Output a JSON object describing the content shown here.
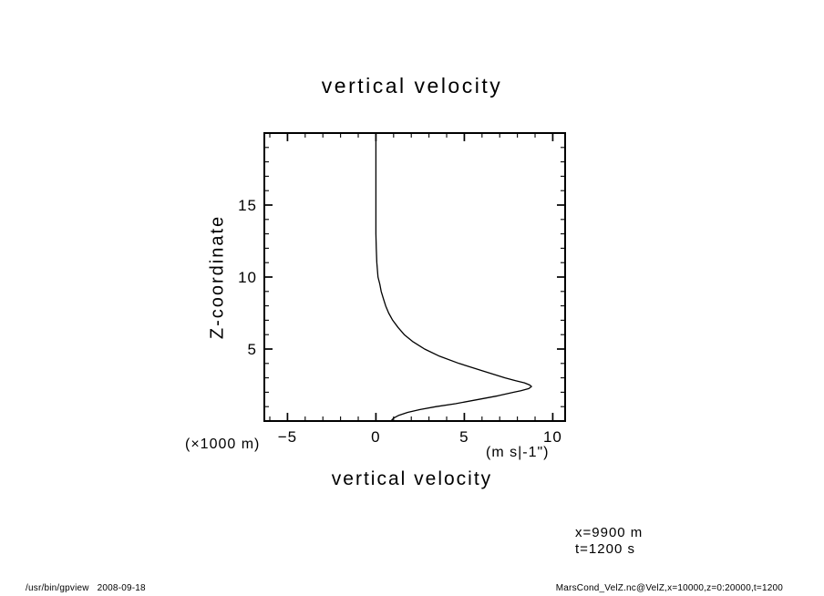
{
  "page": {
    "title": "vertical velocity",
    "x_axis_title": "vertical velocity",
    "y_axis_label": "Z-coordinate",
    "x_unit_left": "(×1000 m)",
    "x_unit_right": "(m s|-1\")",
    "annotations": [
      "x=9900 m",
      "t=1200 s"
    ],
    "footer_left": "/usr/bin/gpview   2008-09-18",
    "footer_right": "MarsCond_VelZ.nc@VelZ,x=10000,z=0:20000,t=1200"
  },
  "chart_data": {
    "type": "line",
    "title": "vertical velocity",
    "xlabel": "vertical velocity (m s-1)",
    "ylabel": "Z-coordinate (×1000 m)",
    "xlim": [
      -6.31,
      10.7
    ],
    "ylim": [
      0,
      20
    ],
    "grid": false,
    "legend": "none",
    "line_color": "#000000",
    "x_ticks": [
      {
        "value": -5,
        "label": "−5"
      },
      {
        "value": 0,
        "label": "0"
      },
      {
        "value": 5,
        "label": "5"
      },
      {
        "value": 10,
        "label": "10"
      }
    ],
    "y_ticks": [
      {
        "value": 5,
        "label": "5"
      },
      {
        "value": 10,
        "label": "10"
      },
      {
        "value": 15,
        "label": "15"
      }
    ],
    "x_minor_step": 1,
    "y_minor_step": 1,
    "series": [
      {
        "name": "VelZ",
        "points": [
          [
            0,
            20
          ],
          [
            0,
            17
          ],
          [
            0,
            15
          ],
          [
            0,
            13
          ],
          [
            0.02,
            12
          ],
          [
            0.05,
            11
          ],
          [
            0.12,
            10
          ],
          [
            0.22,
            9.5
          ],
          [
            0.3,
            9
          ],
          [
            0.42,
            8.5
          ],
          [
            0.55,
            8
          ],
          [
            0.72,
            7.5
          ],
          [
            0.95,
            7
          ],
          [
            1.25,
            6.5
          ],
          [
            1.6,
            6
          ],
          [
            2.1,
            5.5
          ],
          [
            2.75,
            5
          ],
          [
            3.6,
            4.5
          ],
          [
            4.7,
            4
          ],
          [
            6.0,
            3.5
          ],
          [
            7.3,
            3
          ],
          [
            7.9,
            2.8
          ],
          [
            8.4,
            2.65
          ],
          [
            8.7,
            2.5
          ],
          [
            8.8,
            2.4
          ],
          [
            8.65,
            2.25
          ],
          [
            8.2,
            2.1
          ],
          [
            7.8,
            2
          ],
          [
            6.9,
            1.75
          ],
          [
            5.8,
            1.5
          ],
          [
            4.5,
            1.2
          ],
          [
            3.4,
            1.0
          ],
          [
            2.5,
            0.8
          ],
          [
            1.8,
            0.6
          ],
          [
            1.3,
            0.4
          ],
          [
            1.0,
            0.2
          ],
          [
            0.85,
            0
          ]
        ]
      }
    ]
  }
}
